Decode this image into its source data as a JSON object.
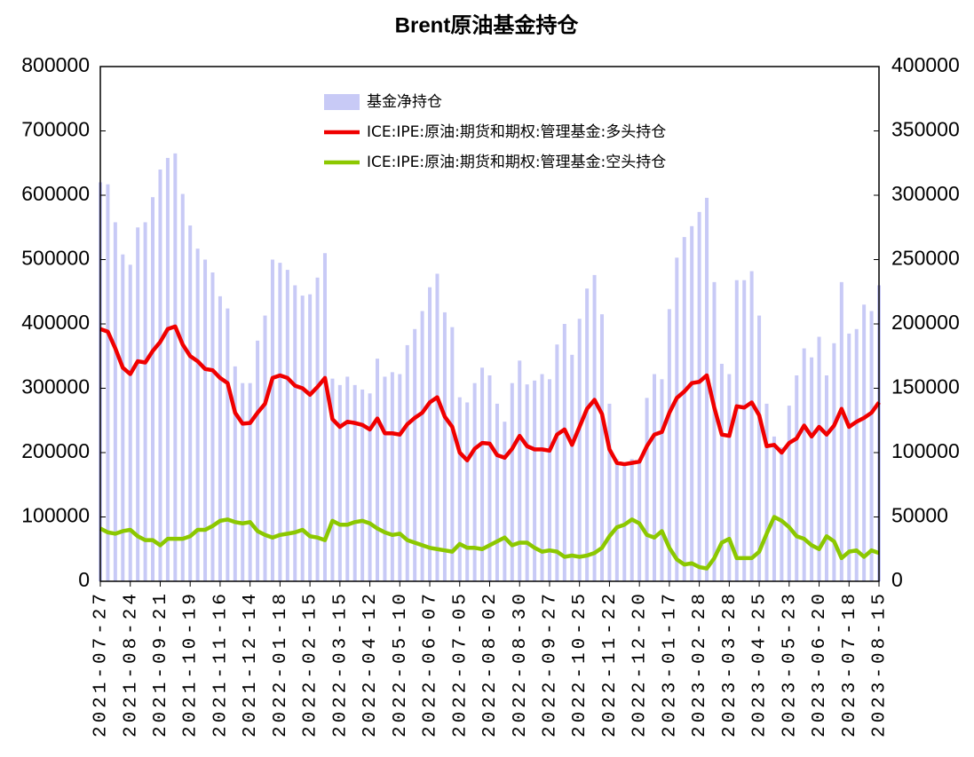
{
  "chart_data": {
    "type": "combo",
    "title": "Brent原油基金持仓",
    "categories": [
      "2021-07-27",
      null,
      null,
      null,
      "2021-08-24",
      null,
      null,
      null,
      "2021-09-21",
      null,
      null,
      null,
      "2021-10-19",
      null,
      null,
      null,
      "2021-11-16",
      null,
      null,
      null,
      "2021-12-14",
      null,
      null,
      null,
      "2022-01-18",
      null,
      null,
      null,
      "2022-02-15",
      null,
      null,
      null,
      "2022-03-15",
      null,
      null,
      null,
      "2022-04-12",
      null,
      null,
      null,
      "2022-05-10",
      null,
      null,
      null,
      "2022-06-07",
      null,
      null,
      null,
      "2022-07-05",
      null,
      null,
      null,
      "2022-08-02",
      null,
      null,
      null,
      "2022-08-30",
      null,
      null,
      null,
      "2022-09-27",
      null,
      null,
      null,
      "2022-10-25",
      null,
      null,
      null,
      "2022-11-22",
      null,
      null,
      null,
      "2022-12-20",
      null,
      null,
      null,
      "2023-01-17",
      null,
      null,
      null,
      "2023-02-28",
      null,
      null,
      null,
      "2023-03-28",
      null,
      null,
      null,
      "2023-04-25",
      null,
      null,
      null,
      "2023-05-23",
      null,
      null,
      null,
      "2023-06-20",
      null,
      null,
      null,
      "2023-07-18",
      null,
      null,
      null,
      "2023-08-15"
    ],
    "series": [
      {
        "name": "基金净持仓",
        "type": "bar",
        "axis": "y2",
        "color": "#c8caf6",
        "values": [
          310000,
          308500,
          279000,
          254000,
          246000,
          275000,
          279000,
          298500,
          320000,
          329000,
          332500,
          301000,
          276500,
          258500,
          250000,
          240000,
          221500,
          212000,
          167000,
          154000,
          154000,
          187000,
          206500,
          250000,
          247500,
          242000,
          230000,
          222000,
          223000,
          236000,
          255000,
          157500,
          152500,
          159000,
          152500,
          149000,
          146000,
          173000,
          159000,
          162500,
          161000,
          183500,
          196000,
          210000,
          228500,
          239000,
          209000,
          197500,
          143000,
          139000,
          154000,
          166000,
          160000,
          138000,
          124000,
          154000,
          171500,
          153000,
          156000,
          161000,
          157000,
          184000,
          200000,
          176000,
          204000,
          227500,
          238000,
          207500,
          138000,
          95000,
          92500,
          95000,
          95000,
          142500,
          161000,
          157000,
          211500,
          251500,
          267500,
          276000,
          287000,
          298000,
          232500,
          169000,
          161000,
          234000,
          234000,
          241000,
          206500,
          138000,
          112500,
          104000,
          136500,
          160000,
          181000,
          174000,
          190000,
          160000,
          185000,
          232500,
          192500,
          196000,
          215000,
          210000,
          230000
        ]
      },
      {
        "name": "ICE:IPE:原油:期货和期权:管理基金:多头持仓",
        "type": "line",
        "color": "#f00000",
        "values": [
          392000,
          388000,
          362000,
          332000,
          322000,
          342000,
          340000,
          358000,
          372000,
          392000,
          396000,
          368000,
          350000,
          342000,
          330000,
          328000,
          316000,
          308000,
          262000,
          245000,
          246000,
          262000,
          276000,
          316000,
          320000,
          316000,
          304000,
          300000,
          290000,
          302000,
          316000,
          252000,
          240000,
          248000,
          246000,
          243000,
          236000,
          253000,
          230000,
          230000,
          228000,
          244000,
          254000,
          262000,
          278000,
          286000,
          256000,
          240000,
          200000,
          188000,
          206000,
          215000,
          214000,
          196000,
          192000,
          206000,
          226000,
          210000,
          205000,
          205000,
          203000,
          228000,
          236000,
          212000,
          240000,
          268000,
          282000,
          260000,
          205000,
          184000,
          182000,
          184000,
          186000,
          210000,
          228000,
          232000,
          262000,
          285000,
          295000,
          308000,
          310000,
          320000,
          270000,
          228000,
          226000,
          272000,
          270000,
          278000,
          258000,
          210000,
          212000,
          200000,
          215000,
          222000,
          242000,
          225000,
          240000,
          228000,
          242000,
          268000,
          240000,
          248000,
          254000,
          262000,
          278000
        ]
      },
      {
        "name": "ICE:IPE:原油:期货和期权:管理基金:空头持仓",
        "type": "line",
        "color": "#8cc800",
        "values": [
          82000,
          76000,
          74000,
          78000,
          80000,
          70000,
          64000,
          64000,
          56000,
          66000,
          66000,
          66000,
          70000,
          80000,
          80000,
          86000,
          94000,
          96000,
          92000,
          90000,
          92000,
          78000,
          72000,
          68000,
          72000,
          74000,
          76000,
          80000,
          70000,
          68000,
          64000,
          94000,
          88000,
          88000,
          92000,
          94000,
          90000,
          82000,
          76000,
          72000,
          74000,
          64000,
          60000,
          56000,
          52000,
          50000,
          48000,
          46000,
          58000,
          52000,
          52000,
          50000,
          56000,
          62000,
          68000,
          56000,
          60000,
          60000,
          52000,
          46000,
          48000,
          46000,
          38000,
          40000,
          38000,
          40000,
          44000,
          52000,
          70000,
          84000,
          88000,
          96000,
          90000,
          72000,
          68000,
          78000,
          52000,
          34000,
          26000,
          28000,
          22000,
          20000,
          36000,
          60000,
          66000,
          36000,
          36000,
          36000,
          46000,
          74000,
          100000,
          94000,
          84000,
          70000,
          66000,
          56000,
          50000,
          70000,
          62000,
          36000,
          46000,
          48000,
          38000,
          48000,
          44000
        ]
      }
    ],
    "ylim": [
      0,
      800000
    ],
    "yticks": [
      0,
      100000,
      200000,
      300000,
      400000,
      500000,
      600000,
      700000,
      800000
    ],
    "y2lim": [
      0,
      400000
    ],
    "y2ticks": [
      0,
      50000,
      100000,
      150000,
      200000,
      250000,
      300000,
      350000,
      400000
    ],
    "grid": false,
    "legend": "upper center"
  }
}
